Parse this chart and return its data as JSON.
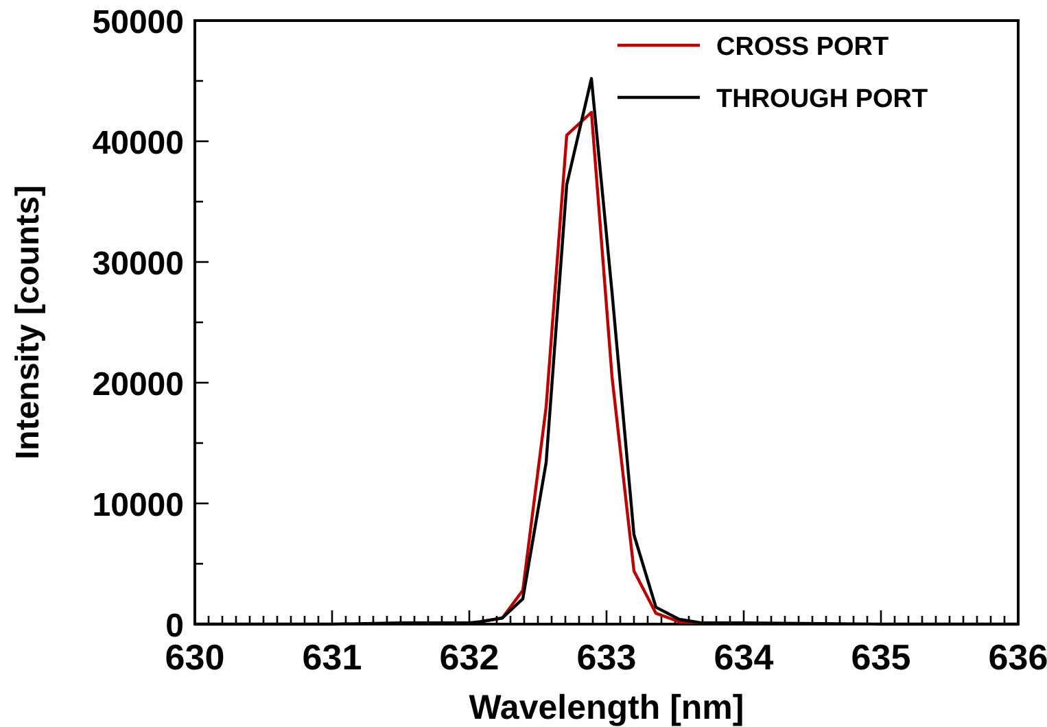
{
  "chart_data": {
    "type": "line",
    "xlabel": "Wavelength [nm]",
    "ylabel": "Intensity [counts]",
    "xlim": [
      630,
      636
    ],
    "ylim": [
      0,
      50000
    ],
    "xticks": [
      630,
      {
        "value": 630.1,
        "label": null
      },
      {
        "value": 630.2,
        "label": null
      },
      {
        "value": 630.3,
        "label": null
      },
      {
        "value": 630.4,
        "label": null
      },
      {
        "value": 630.5,
        "label": null
      },
      {
        "value": 630.6,
        "label": null
      },
      {
        "value": 630.7,
        "label": null
      },
      {
        "value": 630.8,
        "label": null
      },
      {
        "value": 630.9,
        "label": null
      },
      631,
      {
        "value": 631.1,
        "label": null
      },
      {
        "value": 631.2,
        "label": null
      },
      {
        "value": 631.3,
        "label": null
      },
      {
        "value": 631.4,
        "label": null
      },
      {
        "value": 631.5,
        "label": null
      },
      {
        "value": 631.6,
        "label": null
      },
      {
        "value": 631.7,
        "label": null
      },
      {
        "value": 631.8,
        "label": null
      },
      {
        "value": 631.9,
        "label": null
      },
      632,
      {
        "value": 632.1,
        "label": null
      },
      {
        "value": 632.2,
        "label": null
      },
      {
        "value": 632.3,
        "label": null
      },
      {
        "value": 632.4,
        "label": null
      },
      {
        "value": 632.5,
        "label": null
      },
      {
        "value": 632.6,
        "label": null
      },
      {
        "value": 632.7,
        "label": null
      },
      {
        "value": 632.8,
        "label": null
      },
      {
        "value": 632.9,
        "label": null
      },
      633,
      {
        "value": 633.1,
        "label": null
      },
      {
        "value": 633.2,
        "label": null
      },
      {
        "value": 633.3,
        "label": null
      },
      {
        "value": 633.4,
        "label": null
      },
      {
        "value": 633.5,
        "label": null
      },
      {
        "value": 633.6,
        "label": null
      },
      {
        "value": 633.7,
        "label": null
      },
      {
        "value": 633.8,
        "label": null
      },
      {
        "value": 633.9,
        "label": null
      },
      634,
      {
        "value": 634.1,
        "label": null
      },
      {
        "value": 634.2,
        "label": null
      },
      {
        "value": 634.3,
        "label": null
      },
      {
        "value": 634.4,
        "label": null
      },
      {
        "value": 634.5,
        "label": null
      },
      {
        "value": 634.6,
        "label": null
      },
      {
        "value": 634.7,
        "label": null
      },
      {
        "value": 634.8,
        "label": null
      },
      {
        "value": 634.9,
        "label": null
      },
      635,
      {
        "value": 635.1,
        "label": null
      },
      {
        "value": 635.2,
        "label": null
      },
      {
        "value": 635.3,
        "label": null
      },
      {
        "value": 635.4,
        "label": null
      },
      {
        "value": 635.5,
        "label": null
      },
      {
        "value": 635.6,
        "label": null
      },
      {
        "value": 635.7,
        "label": null
      },
      {
        "value": 635.8,
        "label": null
      },
      {
        "value": 635.9,
        "label": null
      },
      636
    ],
    "yticks": [
      0,
      {
        "value": 5000,
        "label": null
      },
      10000,
      {
        "value": 15000,
        "label": null
      },
      20000,
      {
        "value": 25000,
        "label": null
      },
      30000,
      {
        "value": 35000,
        "label": null
      },
      40000,
      {
        "value": 45000,
        "label": null
      },
      50000
    ],
    "grid": false,
    "legend": "top right",
    "marker": "none",
    "line_style": "solid",
    "x": [
      630,
      631,
      631.5,
      632,
      632.08,
      632.24,
      632.39,
      632.56,
      632.71,
      632.89,
      633.04,
      633.2,
      633.36,
      633.53,
      633.69,
      634,
      635,
      636
    ],
    "series": [
      {
        "name": "CROSS PORT",
        "color": "#c00000",
        "values": [
          null,
          null,
          null,
          null,
          200,
          500,
          2800,
          18000,
          40500,
          42400,
          20500,
          4400,
          900,
          200,
          100,
          null,
          null,
          null
        ]
      },
      {
        "name": "THROUGH PORT",
        "color": "#000000",
        "values": [
          0,
          0,
          100,
          100,
          200,
          500,
          2100,
          13400,
          36400,
          45200,
          27500,
          7400,
          1400,
          400,
          100,
          100,
          0,
          0
        ]
      }
    ]
  }
}
